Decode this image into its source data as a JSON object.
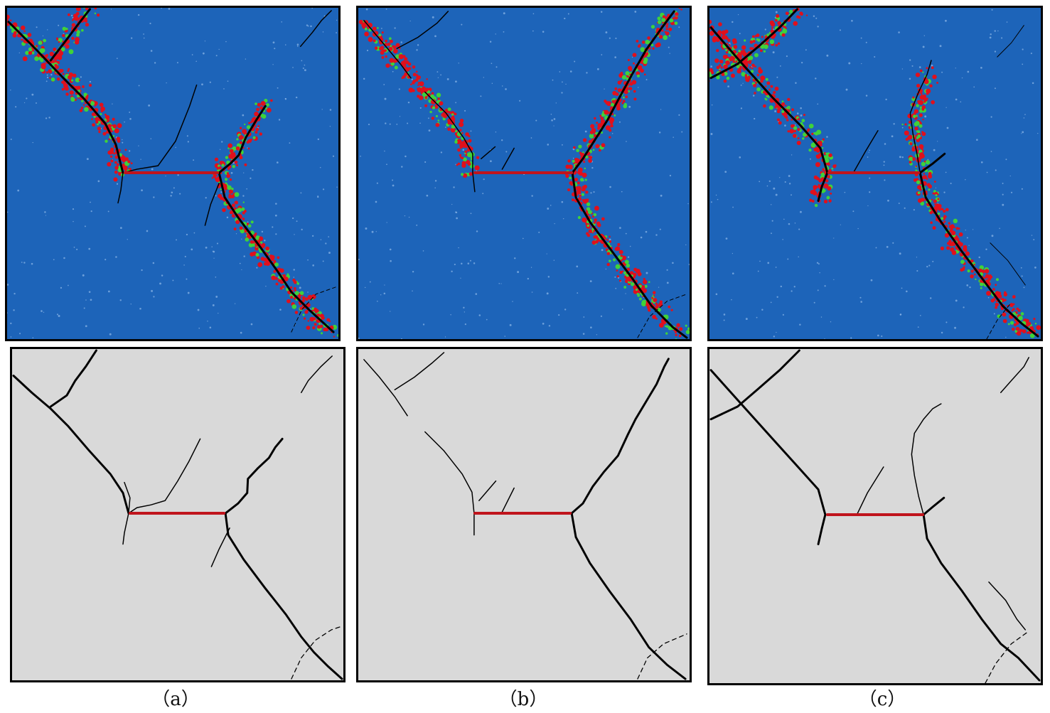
{
  "labels": {
    "a": "（a）",
    "b": "（b）",
    "c": "（c）"
  },
  "colors": {
    "matrix": "#1d64b9",
    "damage_red": "#e0101c",
    "damage_green": "#3fd23a",
    "crack": "#000000",
    "preset_flaw": "#c0141c",
    "sketch_background": "#d9d9d9"
  }
}
